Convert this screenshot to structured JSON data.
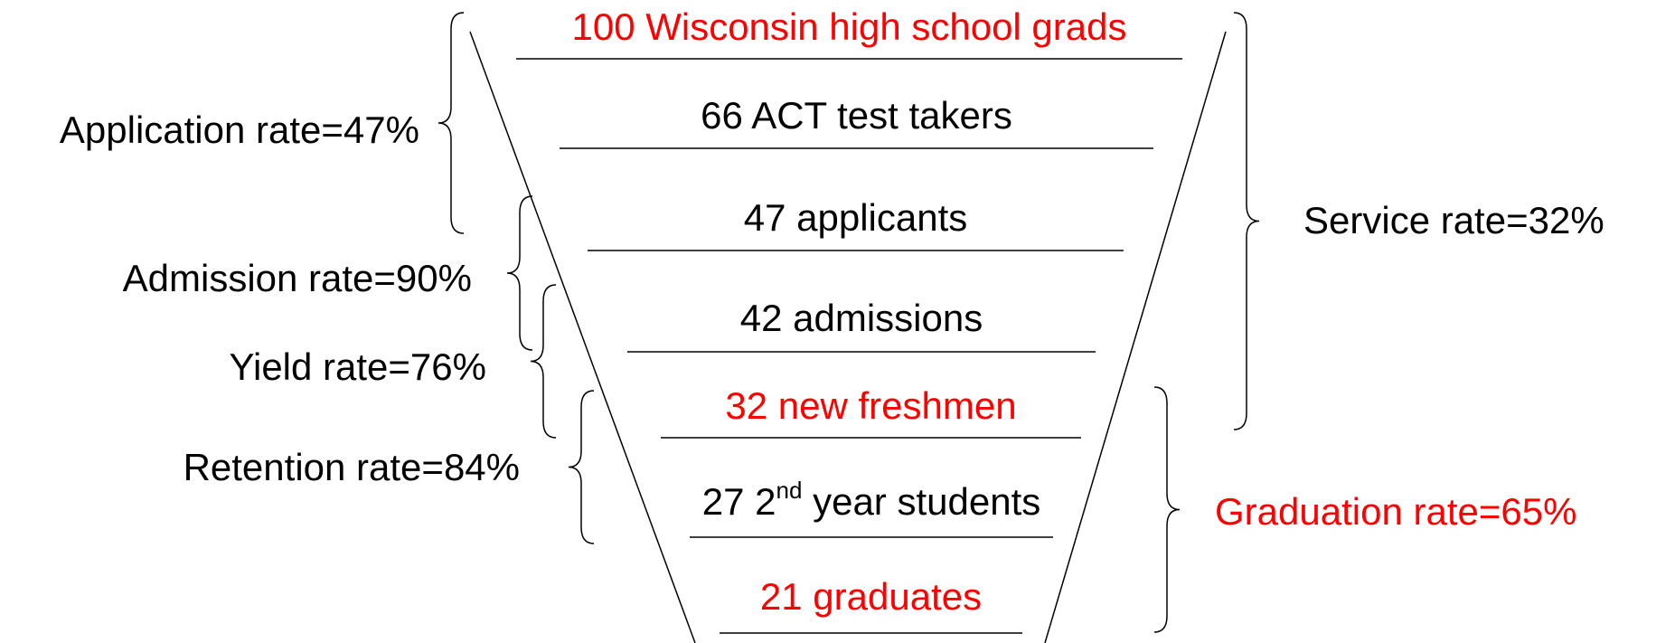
{
  "stages": [
    {
      "label": "100 Wisconsin high school grads",
      "color": "red"
    },
    {
      "label": "66  ACT test takers"
    },
    {
      "label": "47 applicants"
    },
    {
      "label": "42 admissions"
    },
    {
      "label": "32 new freshmen",
      "color": "red"
    },
    {
      "label": "27 2",
      "sup": "nd",
      "after": " year students"
    },
    {
      "label": "21 graduates",
      "color": "red"
    }
  ],
  "left_rates": [
    {
      "label": "Application rate=47%"
    },
    {
      "label": "Admission rate=90%"
    },
    {
      "label": "Yield rate=76%"
    },
    {
      "label": "Retention rate=84%"
    }
  ],
  "right_rates": [
    {
      "label": "Service rate=32%"
    },
    {
      "label": "Graduation rate=65%",
      "color": "red"
    }
  ]
}
